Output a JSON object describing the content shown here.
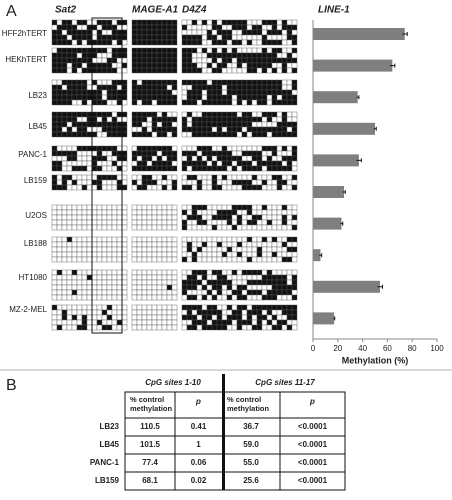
{
  "panel_labels": [
    "A",
    "B"
  ],
  "grid_headers": [
    "Sat2",
    "MAGE-A1",
    "D4Z4"
  ],
  "chart_data": {
    "type": "hbar",
    "title": "LINE-1",
    "categories": [
      "HFF2hTERT",
      "HEKhTERT",
      "LB23",
      "LB45",
      "PANC-1",
      "LB159",
      "U2OS",
      "LB188",
      "HT1080",
      "MZ-2-MEL"
    ],
    "values": [
      74,
      64,
      36,
      50,
      37,
      25,
      23,
      6,
      54,
      17
    ],
    "errors": [
      2,
      2,
      1,
      1,
      2,
      1,
      1,
      1,
      2,
      0.5
    ],
    "color": "#7f7f7f",
    "xlim": [
      0,
      100
    ],
    "xticks": [
      0,
      20,
      40,
      60,
      80,
      100
    ],
    "xlabel": "Methylation (%)"
  },
  "table": {
    "groups": [
      "CpG sites 1-10",
      "CpG sites 11-17"
    ],
    "columns": [
      "% control methylation",
      "p",
      "% control methylation",
      "p"
    ],
    "rows": [
      [
        "LB23",
        "110.5",
        "0.41",
        "36.7",
        "<0.0001"
      ],
      [
        "LB45",
        "101.5",
        "1",
        "59.0",
        "<0.0001"
      ],
      [
        "PANC-1",
        "77.4",
        "0.06",
        "55.0",
        "<0.0001"
      ],
      [
        "LB159",
        "68.1",
        "0.02",
        "25.6",
        "<0.0001"
      ]
    ]
  }
}
